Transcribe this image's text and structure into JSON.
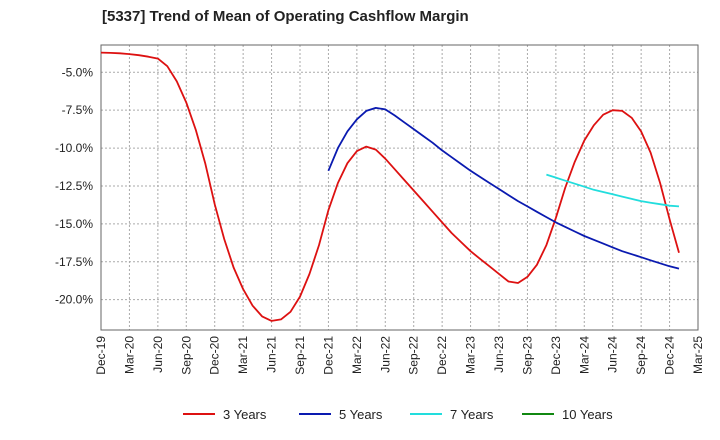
{
  "chart_data": {
    "type": "line",
    "title": "[5337]  Trend of Mean of Operating Cashflow Margin",
    "xlabel": "",
    "ylabel": "",
    "x_ticks": [
      "Dec-19",
      "Mar-20",
      "Jun-20",
      "Sep-20",
      "Dec-20",
      "Mar-21",
      "Jun-21",
      "Sep-21",
      "Dec-21",
      "Mar-22",
      "Jun-22",
      "Sep-22",
      "Dec-22",
      "Mar-23",
      "Jun-23",
      "Sep-23",
      "Dec-23",
      "Mar-24",
      "Jun-24",
      "Sep-24",
      "Dec-24",
      "Mar-25"
    ],
    "y_ticks": [
      -5.0,
      -7.5,
      -10.0,
      -12.5,
      -15.0,
      -17.5,
      -20.0
    ],
    "y_tick_labels": [
      "-5.0%",
      "-7.5%",
      "-10.0%",
      "-12.5%",
      "-15.0%",
      "-17.5%",
      "-20.0%"
    ],
    "ylim": [
      -22.0,
      -3.2
    ],
    "xlim": [
      "Dec-19",
      "Mar-25"
    ],
    "grid": true,
    "legend_position": "bottom",
    "series": [
      {
        "name": "3 Years",
        "color": "#dd1111",
        "points": [
          [
            "Dec-19",
            -3.7
          ],
          [
            "Jan-20",
            -3.72
          ],
          [
            "Feb-20",
            -3.75
          ],
          [
            "Mar-20",
            -3.8
          ],
          [
            "Apr-20",
            -3.87
          ],
          [
            "May-20",
            -3.97
          ],
          [
            "Jun-20",
            -4.1
          ],
          [
            "Jul-20",
            -4.6
          ],
          [
            "Aug-20",
            -5.6
          ],
          [
            "Sep-20",
            -7.0
          ],
          [
            "Oct-20",
            -8.8
          ],
          [
            "Nov-20",
            -11.0
          ],
          [
            "Dec-20",
            -13.7
          ],
          [
            "Jan-21",
            -16.0
          ],
          [
            "Feb-21",
            -17.9
          ],
          [
            "Mar-21",
            -19.3
          ],
          [
            "Apr-21",
            -20.4
          ],
          [
            "May-21",
            -21.1
          ],
          [
            "Jun-21",
            -21.4
          ],
          [
            "Jul-21",
            -21.3
          ],
          [
            "Aug-21",
            -20.8
          ],
          [
            "Sep-21",
            -19.8
          ],
          [
            "Oct-21",
            -18.3
          ],
          [
            "Nov-21",
            -16.4
          ],
          [
            "Dec-21",
            -14.1
          ],
          [
            "Jan-22",
            -12.3
          ],
          [
            "Feb-22",
            -11.0
          ],
          [
            "Mar-22",
            -10.2
          ],
          [
            "Apr-22",
            -9.9
          ],
          [
            "May-22",
            -10.1
          ],
          [
            "Jun-22",
            -10.7
          ],
          [
            "Jul-22",
            -11.4
          ],
          [
            "Aug-22",
            -12.1
          ],
          [
            "Sep-22",
            -12.8
          ],
          [
            "Oct-22",
            -13.5
          ],
          [
            "Nov-22",
            -14.2
          ],
          [
            "Dec-22",
            -14.9
          ],
          [
            "Jan-23",
            -15.6
          ],
          [
            "Feb-23",
            -16.2
          ],
          [
            "Mar-23",
            -16.8
          ],
          [
            "Apr-23",
            -17.3
          ],
          [
            "May-23",
            -17.8
          ],
          [
            "Jun-23",
            -18.3
          ],
          [
            "Jul-23",
            -18.8
          ],
          [
            "Aug-23",
            -18.9
          ],
          [
            "Sep-23",
            -18.5
          ],
          [
            "Oct-23",
            -17.7
          ],
          [
            "Nov-23",
            -16.4
          ],
          [
            "Dec-23",
            -14.6
          ],
          [
            "Jan-24",
            -12.6
          ],
          [
            "Feb-24",
            -10.9
          ],
          [
            "Mar-24",
            -9.5
          ],
          [
            "Apr-24",
            -8.5
          ],
          [
            "May-24",
            -7.8
          ],
          [
            "Jun-24",
            -7.5
          ],
          [
            "Jul-24",
            -7.55
          ],
          [
            "Aug-24",
            -8.0
          ],
          [
            "Sep-24",
            -8.9
          ],
          [
            "Oct-24",
            -10.3
          ],
          [
            "Nov-24",
            -12.3
          ],
          [
            "Dec-24",
            -14.7
          ],
          [
            "Jan-25",
            -16.9
          ]
        ]
      },
      {
        "name": "5 Years",
        "color": "#0a1ab0",
        "points": [
          [
            "Dec-21",
            -11.5
          ],
          [
            "Jan-22",
            -10.0
          ],
          [
            "Feb-22",
            -8.9
          ],
          [
            "Mar-22",
            -8.1
          ],
          [
            "Apr-22",
            -7.55
          ],
          [
            "May-22",
            -7.35
          ],
          [
            "Jun-22",
            -7.45
          ],
          [
            "Jul-22",
            -7.85
          ],
          [
            "Aug-22",
            -8.3
          ],
          [
            "Sep-22",
            -8.75
          ],
          [
            "Oct-22",
            -9.2
          ],
          [
            "Nov-22",
            -9.65
          ],
          [
            "Dec-22",
            -10.15
          ],
          [
            "Jan-23",
            -10.6
          ],
          [
            "Feb-23",
            -11.05
          ],
          [
            "Mar-23",
            -11.5
          ],
          [
            "Apr-23",
            -11.9
          ],
          [
            "May-23",
            -12.3
          ],
          [
            "Jun-23",
            -12.7
          ],
          [
            "Jul-23",
            -13.1
          ],
          [
            "Aug-23",
            -13.5
          ],
          [
            "Sep-23",
            -13.85
          ],
          [
            "Oct-23",
            -14.2
          ],
          [
            "Nov-23",
            -14.55
          ],
          [
            "Dec-23",
            -14.9
          ],
          [
            "Jan-24",
            -15.2
          ],
          [
            "Feb-24",
            -15.5
          ],
          [
            "Mar-24",
            -15.8
          ],
          [
            "Apr-24",
            -16.05
          ],
          [
            "May-24",
            -16.3
          ],
          [
            "Jun-24",
            -16.55
          ],
          [
            "Jul-24",
            -16.8
          ],
          [
            "Aug-24",
            -17.0
          ],
          [
            "Sep-24",
            -17.2
          ],
          [
            "Oct-24",
            -17.4
          ],
          [
            "Nov-24",
            -17.6
          ],
          [
            "Dec-24",
            -17.8
          ],
          [
            "Jan-25",
            -17.95
          ]
        ]
      },
      {
        "name": "7 Years",
        "color": "#22dddd",
        "points": [
          [
            "Nov-23",
            -11.75
          ],
          [
            "Dec-23",
            -11.95
          ],
          [
            "Jan-24",
            -12.15
          ],
          [
            "Feb-24",
            -12.35
          ],
          [
            "Mar-24",
            -12.55
          ],
          [
            "Apr-24",
            -12.75
          ],
          [
            "May-24",
            -12.9
          ],
          [
            "Jun-24",
            -13.05
          ],
          [
            "Jul-24",
            -13.2
          ],
          [
            "Aug-24",
            -13.35
          ],
          [
            "Sep-24",
            -13.5
          ],
          [
            "Oct-24",
            -13.6
          ],
          [
            "Nov-24",
            -13.7
          ],
          [
            "Dec-24",
            -13.8
          ],
          [
            "Jan-25",
            -13.85
          ]
        ]
      },
      {
        "name": "10 Years",
        "color": "#118811",
        "points": []
      }
    ]
  }
}
